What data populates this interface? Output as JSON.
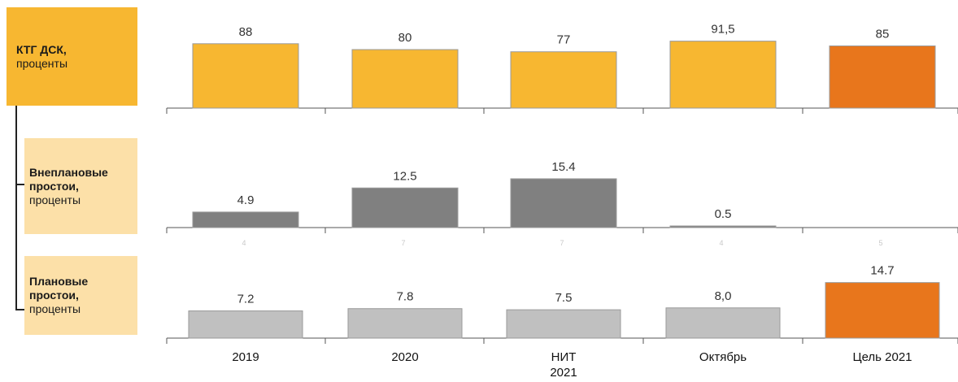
{
  "labels": {
    "ktg": {
      "title": "КТГ ДСК,",
      "subtitle": "проценты"
    },
    "unplanned": {
      "title_1": "Внеплановые",
      "title_2": "простои,",
      "subtitle": "проценты"
    },
    "planned": {
      "title_1": "Плановые",
      "title_2": "простои,",
      "subtitle": "проценты"
    }
  },
  "colors": {
    "ktg_bar": "#F7B731",
    "target_bar": "#E8761C",
    "unplanned_bar": "#808080",
    "planned_bar": "#C0C0C0",
    "label_dark": "#F7B731",
    "label_light": "#FCE0A8"
  },
  "chart_data": [
    {
      "type": "bar",
      "name": "КТГ ДСК",
      "categories": [
        "2019",
        "2020",
        "НИТ 2021",
        "Октябрь",
        "Цель 2021"
      ],
      "values": [
        88,
        80,
        77,
        91.5,
        85
      ],
      "value_labels": [
        "88",
        "80",
        "77",
        "91,5",
        "85"
      ],
      "highlight_index": 4,
      "ylim": [
        0,
        100
      ]
    },
    {
      "type": "bar",
      "name": "Внеплановые простои",
      "categories": [
        "2019",
        "2020",
        "НИТ 2021",
        "Октябрь",
        "Цель 2021"
      ],
      "values": [
        4.9,
        12.5,
        15.4,
        0.5,
        null
      ],
      "value_labels": [
        "4.9",
        "12.5",
        "15.4",
        "0.5",
        ""
      ],
      "ylim": [
        0,
        16
      ]
    },
    {
      "type": "bar",
      "name": "Плановые простои",
      "categories": [
        "2019",
        "2020",
        "НИТ 2021",
        "Октябрь",
        "Цель 2021"
      ],
      "values": [
        7.2,
        7.8,
        7.5,
        8.0,
        14.7
      ],
      "value_labels": [
        "7.2",
        "7.8",
        "7.5",
        "8,0",
        "14.7"
      ],
      "highlight_index": 4,
      "ylim": [
        0,
        16
      ]
    }
  ],
  "x_axis": {
    "labels": [
      {
        "line1": "2019",
        "line2": ""
      },
      {
        "line1": "2020",
        "line2": ""
      },
      {
        "line1": "НИТ",
        "line2": "2021"
      },
      {
        "line1": "Октябрь",
        "line2": ""
      },
      {
        "line1": "Цель 2021",
        "line2": ""
      }
    ],
    "ghost_marks": [
      "4",
      "7",
      "7",
      "4",
      "5"
    ]
  }
}
